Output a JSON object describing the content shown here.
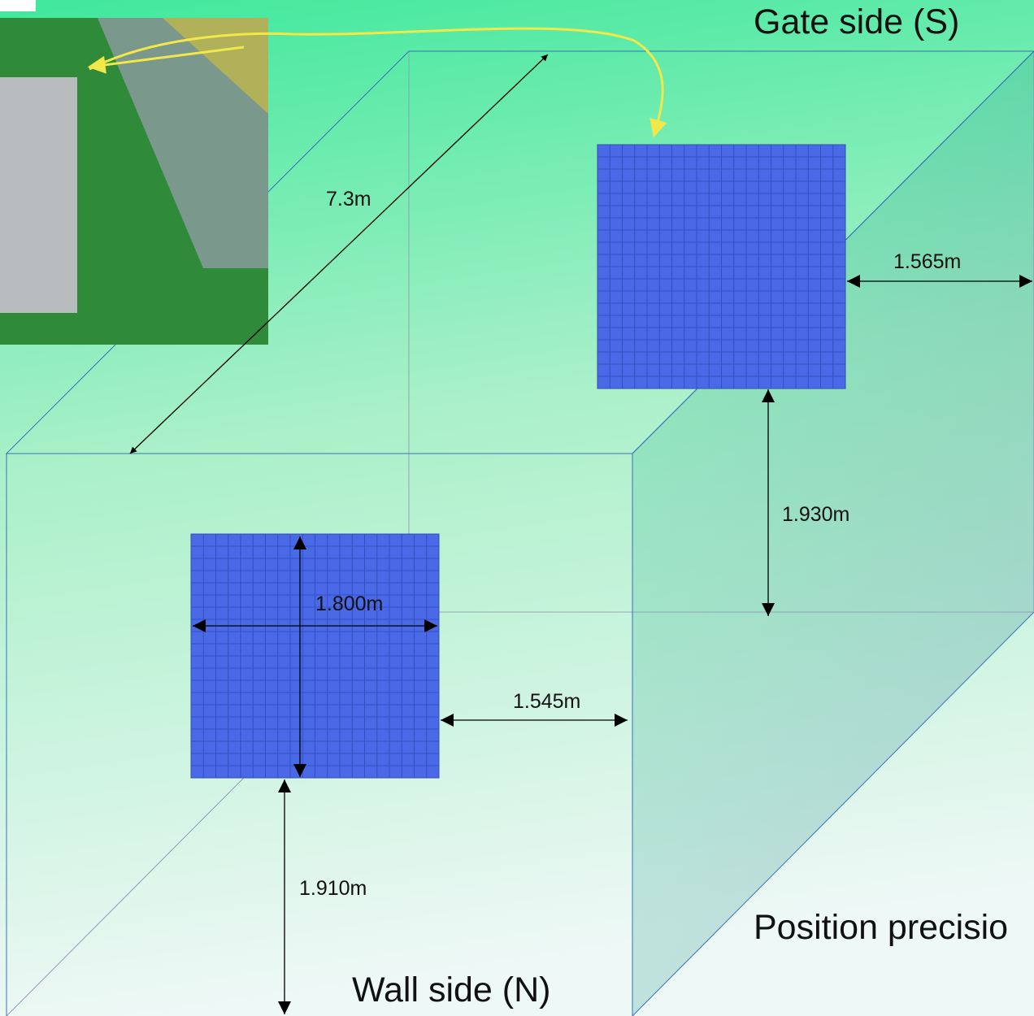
{
  "labels": {
    "gate_side": "Gate side (S)",
    "wall_side": "Wall side (N)",
    "position_note": "Position precisio"
  },
  "dimensions": {
    "depth": "7.3m",
    "top_panel_side_gap": "1.565m",
    "top_panel_height": "1.930m",
    "bottom_panel_size": "1.800m",
    "bottom_panel_side_gap": "1.545m",
    "bottom_panel_height": "1.910m"
  }
}
